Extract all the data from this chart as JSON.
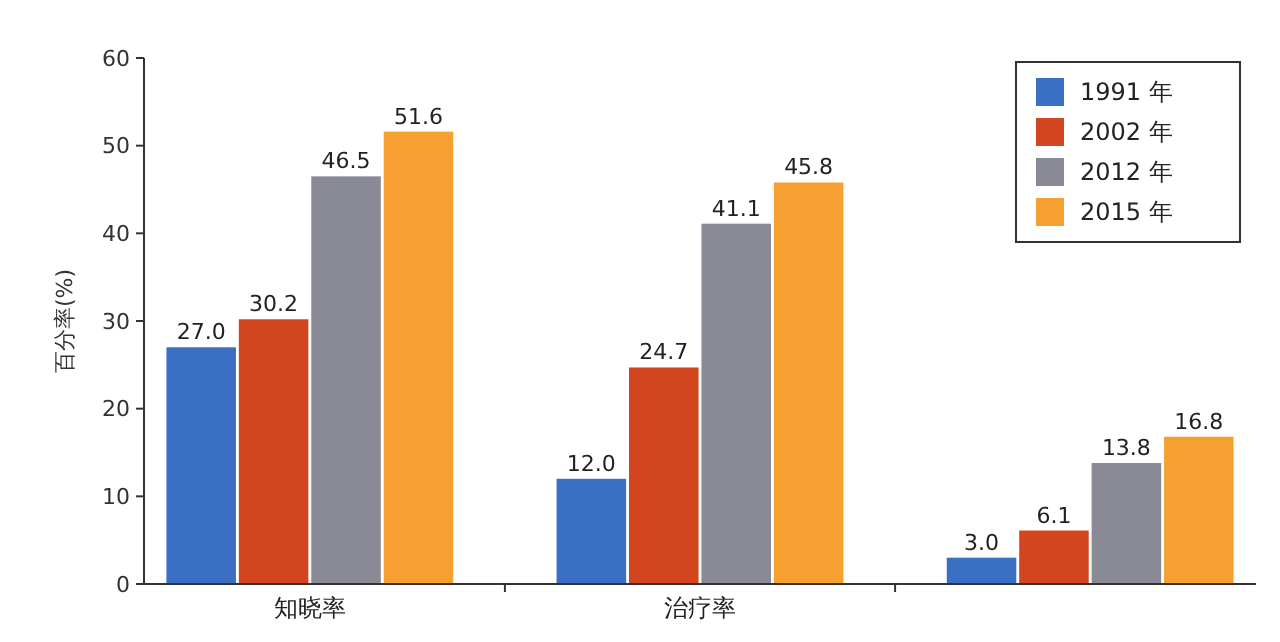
{
  "chart_data": {
    "type": "bar",
    "ylabel": "百分率(%)",
    "categories": [
      "知晓率",
      "治疗率",
      null
    ],
    "series": [
      {
        "name": "1991 年",
        "color": "#3a6fc4",
        "values": [
          27.0,
          12.0,
          3.0
        ],
        "value_labels": [
          "27.0",
          "12.0",
          "3.0"
        ]
      },
      {
        "name": "2002 年",
        "color": "#d2451e",
        "values": [
          30.2,
          24.7,
          6.1
        ],
        "value_labels": [
          "30.2",
          "24.7",
          "6.1"
        ]
      },
      {
        "name": "2012 年",
        "color": "#8a8a96",
        "values": [
          46.5,
          41.1,
          13.8
        ],
        "value_labels": [
          "46.5",
          "41.1",
          "13.8"
        ]
      },
      {
        "name": "2015 年",
        "color": "#f5a030",
        "values": [
          51.6,
          45.8,
          16.8
        ],
        "value_labels": [
          "51.6",
          "45.8",
          "16.8"
        ]
      }
    ],
    "ylim": [
      0,
      60
    ],
    "yticks": [
      0,
      10,
      20,
      30,
      40,
      50,
      60
    ],
    "grid": false,
    "legend": "top right"
  }
}
